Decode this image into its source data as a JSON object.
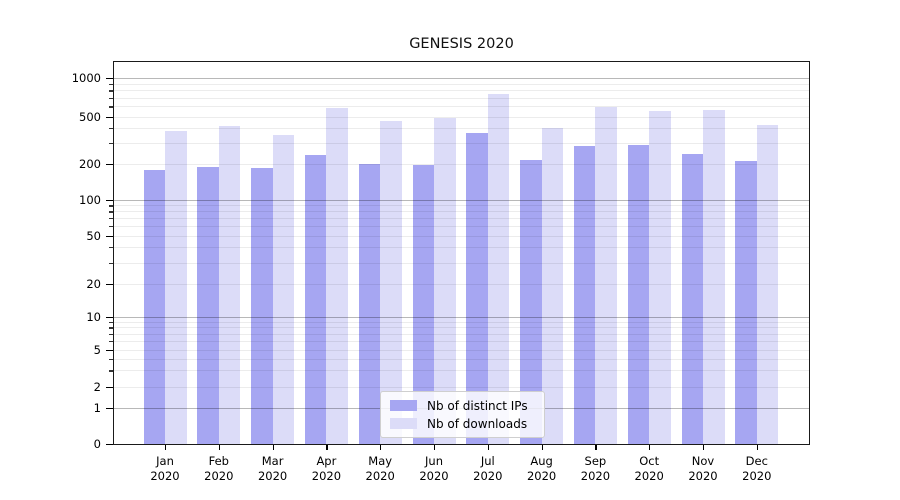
{
  "chart_data": {
    "type": "bar",
    "title": "GENESIS 2020",
    "scale": "symlog",
    "categories": [
      "Jan",
      "Feb",
      "Mar",
      "Apr",
      "May",
      "Jun",
      "Jul",
      "Aug",
      "Sep",
      "Oct",
      "Nov",
      "Dec"
    ],
    "x_sublabel": "2020",
    "y_ticks": [
      0,
      1,
      2,
      5,
      10,
      20,
      50,
      100,
      200,
      500,
      1000
    ],
    "ylim": [
      0,
      1000
    ],
    "grid": "both",
    "legend_position": "lower center",
    "series": [
      {
        "name": "Nb of distinct IPs",
        "color": "#a6a6f2",
        "values": [
          178,
          190,
          184,
          238,
          201,
          196,
          365,
          215,
          283,
          290,
          243,
          212
        ]
      },
      {
        "name": "Nb of downloads",
        "color": "#dcdcf8",
        "values": [
          380,
          419,
          350,
          585,
          461,
          485,
          756,
          403,
          597,
          548,
          563,
          421
        ]
      }
    ]
  }
}
